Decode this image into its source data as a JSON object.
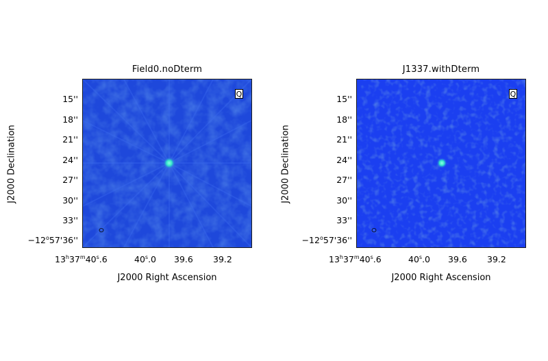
{
  "panels": [
    {
      "title": "Field0.noDterm",
      "stokes_label": "Q",
      "y_ticks": [
        "15''",
        "18''",
        "21''",
        "24''",
        "27''",
        "30''",
        "33''"
      ],
      "y_tick_first": {
        "deg": "−12",
        "min": "57'36''"
      },
      "x_ticks": [
        {
          "h": "13",
          "m": "37",
          "s": "40",
          "frac": ".6",
          "first": true
        },
        {
          "s": "40",
          "frac": ".0"
        },
        {
          "text": "39.6"
        },
        {
          "text": "39.2"
        }
      ],
      "xlabel": "J2000 Right Ascension",
      "ylabel": "J2000 Declination",
      "colors": {
        "background": "#1f4fd8",
        "source": "#33e6c8"
      }
    },
    {
      "title": "J1337.withDterm",
      "stokes_label": "Q",
      "y_ticks": [
        "15''",
        "18''",
        "21''",
        "24''",
        "27''",
        "30''",
        "33''"
      ],
      "y_tick_first": {
        "deg": "−12",
        "min": "57'36''"
      },
      "x_ticks": [
        {
          "h": "13",
          "m": "37",
          "s": "40",
          "frac": ".6",
          "first": true
        },
        {
          "s": "40",
          "frac": ".0"
        },
        {
          "text": "39.6"
        },
        {
          "text": "39.2"
        }
      ],
      "xlabel": "J2000 Right Ascension",
      "ylabel": "J2000 Declination",
      "colors": {
        "background": "#1a3ff0",
        "source": "#33e6c8"
      }
    }
  ]
}
